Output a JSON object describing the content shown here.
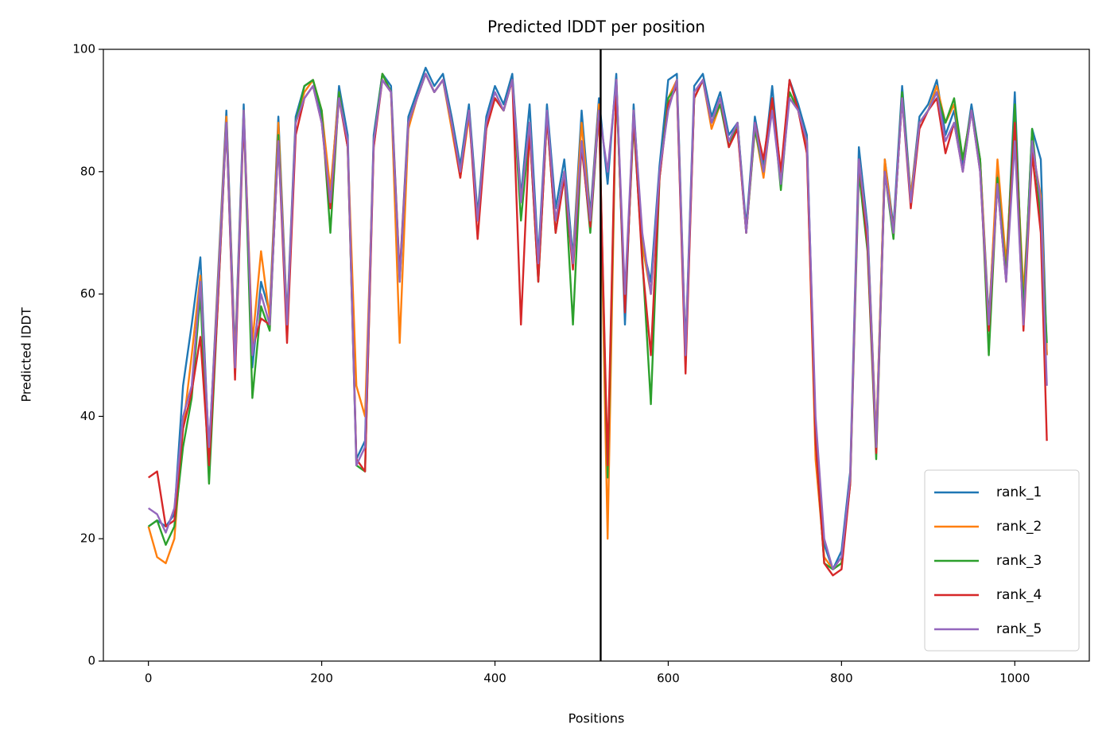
{
  "chart_data": {
    "type": "line",
    "title": "Predicted lDDT per position",
    "x_label": "Positions",
    "y_label": "Predicted lDDT",
    "xlim": [
      -52,
      1086
    ],
    "ylim": [
      0,
      100
    ],
    "xticks": [
      0,
      200,
      400,
      600,
      800,
      1000
    ],
    "yticks": [
      0,
      20,
      40,
      60,
      80,
      100
    ],
    "vline": 522,
    "vline_color": "#000000",
    "legend": "lower right",
    "x": [
      0,
      10,
      20,
      30,
      40,
      50,
      60,
      70,
      80,
      90,
      100,
      110,
      120,
      130,
      140,
      150,
      160,
      170,
      180,
      190,
      200,
      210,
      220,
      230,
      240,
      250,
      260,
      270,
      280,
      290,
      300,
      310,
      320,
      330,
      340,
      350,
      360,
      370,
      380,
      390,
      400,
      410,
      420,
      430,
      440,
      450,
      460,
      470,
      480,
      490,
      500,
      510,
      520,
      530,
      540,
      550,
      560,
      570,
      580,
      590,
      600,
      610,
      620,
      630,
      640,
      650,
      660,
      670,
      680,
      690,
      700,
      710,
      720,
      730,
      740,
      750,
      760,
      770,
      780,
      790,
      800,
      810,
      820,
      830,
      840,
      850,
      860,
      870,
      880,
      890,
      900,
      910,
      920,
      930,
      940,
      950,
      960,
      970,
      980,
      990,
      1000,
      1010,
      1020,
      1030,
      1037
    ],
    "series": [
      {
        "name": "rank_1",
        "color": "#1f77b4",
        "values": [
          22,
          23,
          22,
          24,
          45,
          55,
          66,
          34,
          62,
          90,
          50,
          91,
          48,
          62,
          57,
          89,
          56,
          89,
          94,
          95,
          89,
          76,
          94,
          86,
          33,
          36,
          86,
          96,
          94,
          63,
          89,
          93,
          97,
          94,
          96,
          89,
          81,
          91,
          73,
          89,
          94,
          91,
          96,
          76,
          91,
          66,
          91,
          74,
          82,
          66,
          90,
          73,
          92,
          78,
          96,
          55,
          91,
          68,
          62,
          81,
          95,
          96,
          51,
          94,
          96,
          89,
          93,
          86,
          88,
          71,
          89,
          81,
          94,
          79,
          95,
          91,
          86,
          38,
          19,
          15,
          18,
          31,
          84,
          71,
          36,
          82,
          71,
          94,
          76,
          89,
          91,
          95,
          86,
          90,
          81,
          91,
          82,
          56,
          80,
          63,
          93,
          56,
          87,
          82,
          50
        ]
      },
      {
        "name": "rank_2",
        "color": "#ff7f0e",
        "values": [
          22,
          17,
          16,
          20,
          38,
          50,
          63,
          34,
          61,
          89,
          49,
          90,
          52,
          67,
          56,
          88,
          55,
          88,
          93,
          95,
          90,
          77,
          93,
          84,
          45,
          40,
          84,
          96,
          93,
          52,
          87,
          92,
          96,
          93,
          95,
          87,
          79,
          89,
          72,
          87,
          92,
          90,
          95,
          75,
          88,
          64,
          89,
          72,
          80,
          65,
          88,
          72,
          91,
          20,
          95,
          58,
          90,
          68,
          60,
          79,
          92,
          95,
          50,
          92,
          95,
          87,
          91,
          85,
          87,
          70,
          87,
          79,
          91,
          78,
          93,
          90,
          84,
          33,
          17,
          15,
          16,
          30,
          82,
          70,
          36,
          82,
          70,
          92,
          76,
          88,
          90,
          94,
          88,
          91,
          82,
          90,
          82,
          55,
          82,
          65,
          89,
          60,
          84,
          76,
          50
        ]
      },
      {
        "name": "rank_3",
        "color": "#2ca02c",
        "values": [
          22,
          23,
          19,
          22,
          35,
          43,
          60,
          29,
          58,
          88,
          47,
          90,
          43,
          58,
          54,
          86,
          54,
          88,
          94,
          95,
          90,
          70,
          93,
          84,
          32,
          31,
          85,
          96,
          93,
          62,
          88,
          92,
          96,
          93,
          95,
          88,
          80,
          90,
          72,
          88,
          92,
          90,
          95,
          72,
          87,
          62,
          89,
          70,
          80,
          55,
          85,
          70,
          90,
          30,
          94,
          58,
          88,
          66,
          42,
          79,
          92,
          94,
          49,
          92,
          95,
          88,
          91,
          84,
          88,
          70,
          87,
          80,
          92,
          77,
          93,
          90,
          85,
          36,
          16,
          15,
          16,
          29,
          80,
          67,
          33,
          80,
          69,
          93,
          75,
          88,
          90,
          93,
          88,
          92,
          82,
          90,
          82,
          50,
          79,
          63,
          91,
          57,
          87,
          72,
          52
        ]
      },
      {
        "name": "rank_4",
        "color": "#d62728",
        "values": [
          30,
          31,
          22,
          23,
          38,
          44,
          53,
          32,
          58,
          88,
          46,
          89,
          51,
          56,
          55,
          85,
          52,
          86,
          92,
          94,
          88,
          74,
          92,
          84,
          33,
          31,
          84,
          95,
          93,
          63,
          88,
          92,
          96,
          93,
          95,
          88,
          79,
          90,
          69,
          87,
          92,
          90,
          95,
          55,
          87,
          62,
          89,
          70,
          79,
          64,
          84,
          71,
          90,
          32,
          95,
          57,
          89,
          65,
          50,
          79,
          91,
          94,
          47,
          92,
          95,
          88,
          92,
          84,
          87,
          70,
          88,
          82,
          92,
          80,
          95,
          90,
          83,
          36,
          16,
          14,
          15,
          29,
          82,
          68,
          34,
          80,
          70,
          92,
          74,
          87,
          90,
          92,
          83,
          88,
          80,
          90,
          80,
          54,
          78,
          62,
          88,
          54,
          83,
          70,
          36
        ]
      },
      {
        "name": "rank_5",
        "color": "#9467bd",
        "values": [
          25,
          24,
          21,
          25,
          40,
          45,
          62,
          35,
          60,
          88,
          48,
          90,
          50,
          60,
          55,
          85,
          55,
          88,
          92,
          94,
          88,
          75,
          92,
          85,
          32,
          35,
          85,
          95,
          93,
          62,
          88,
          92,
          96,
          93,
          95,
          88,
          80,
          90,
          72,
          88,
          93,
          90,
          95,
          75,
          88,
          65,
          90,
          72,
          80,
          65,
          85,
          72,
          90,
          80,
          95,
          60,
          90,
          70,
          60,
          80,
          90,
          95,
          50,
          93,
          95,
          88,
          92,
          85,
          88,
          70,
          88,
          80,
          90,
          78,
          92,
          90,
          85,
          40,
          20,
          15,
          17,
          30,
          82,
          70,
          35,
          80,
          70,
          92,
          75,
          88,
          90,
          93,
          85,
          88,
          80,
          90,
          80,
          55,
          78,
          62,
          85,
          55,
          85,
          75,
          45
        ]
      }
    ]
  }
}
